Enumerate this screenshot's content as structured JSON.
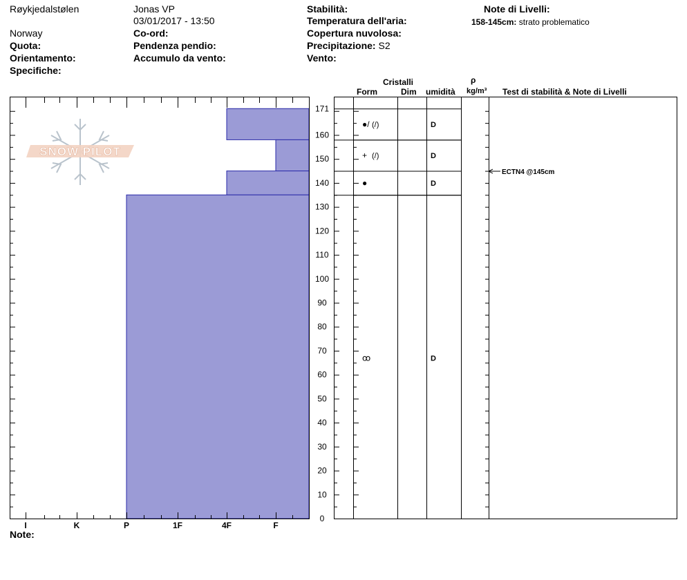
{
  "header": {
    "location": "Røykjedalstølen",
    "country": "Norway",
    "observer": "Jonas VP",
    "datetime": "03/01/2017 - 13:50",
    "elevation_label": "Quota:",
    "aspect_label": "Orientamento:",
    "specifics_label": "Specifiche:",
    "coord_label": "Co-ord:",
    "slope_label": "Pendenza pendio:",
    "wind_loading_label": "Accumulo da vento:",
    "stability_label": "Stabilità:",
    "air_temp_label": "Temperatura dell'aria:",
    "cloud_label": "Copertura nuvolosa:",
    "precip_label": "Precipitazione:",
    "precip_value": "S2",
    "wind_label": "Vento:",
    "layer_notes_title": "Note di Livelli:",
    "layer_note_range": "158-145cm:",
    "layer_note_text": "strato problematico"
  },
  "table_headers": {
    "crystals": "Cristalli",
    "form": "Form",
    "size": "Dim",
    "moisture": "umidità",
    "rho": "ρ",
    "density_unit": "kg/m³",
    "stability_notes": "Test di stabilità & Note di Livelli"
  },
  "watermark": "SNOW PILOT",
  "notes_label": "Note:",
  "stability_test": {
    "label": "ECTN4 @145cm",
    "depth": 145
  },
  "chart_data": {
    "type": "bar",
    "title": "",
    "ylabel": "",
    "xlabel": "",
    "ylim": [
      0,
      171
    ],
    "y_ticks": [
      0,
      10,
      20,
      30,
      40,
      50,
      60,
      70,
      80,
      90,
      100,
      110,
      120,
      130,
      140,
      150,
      160,
      171
    ],
    "hardness_categories": [
      "I",
      "K",
      "P",
      "1F",
      "4F",
      "F"
    ],
    "layers": [
      {
        "top": 171,
        "bottom": 158,
        "hardness": "4F",
        "form": "●/",
        "form_sub": "(/)",
        "moisture": "D"
      },
      {
        "top": 158,
        "bottom": 145,
        "hardness": "F",
        "form": "+",
        "form_sub": "(/)",
        "moisture": "D"
      },
      {
        "top": 145,
        "bottom": 135,
        "hardness": "4F",
        "form": "●",
        "form_sub": "",
        "moisture": "D"
      },
      {
        "top": 135,
        "bottom": 0,
        "hardness": "P",
        "form": "ꝏ",
        "form_sub": "",
        "moisture": "D"
      }
    ]
  }
}
